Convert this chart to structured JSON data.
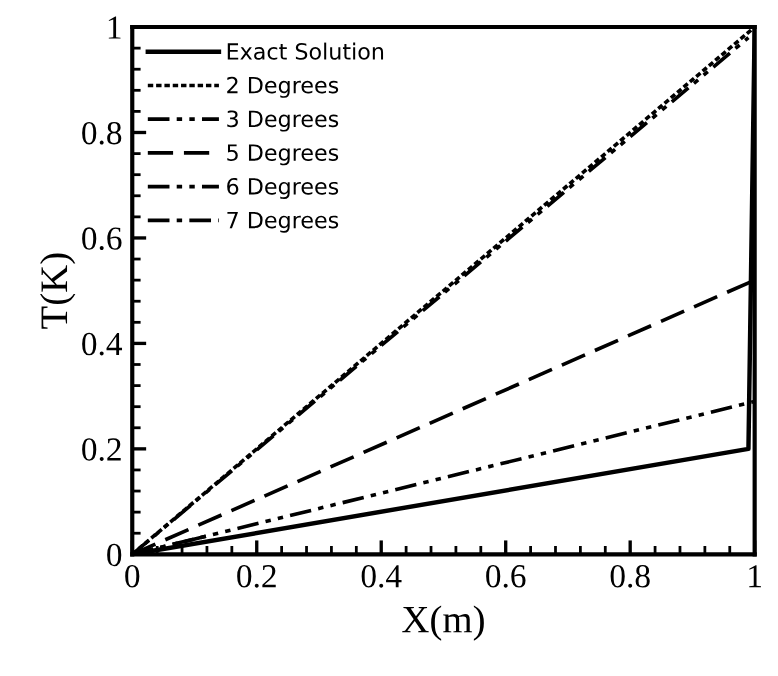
{
  "chart_data": {
    "type": "line",
    "xlabel": "X(m)",
    "ylabel": "T(K)",
    "xlim": [
      0,
      1
    ],
    "ylim": [
      0,
      1
    ],
    "xticks": [
      0,
      0.2,
      0.4,
      0.6,
      0.8,
      1
    ],
    "yticks": [
      0,
      0.2,
      0.4,
      0.6,
      0.8,
      1
    ],
    "grid": false,
    "legend": "top left",
    "marker": "none",
    "series": [
      {
        "name": "Exact Solution",
        "color": "#000000",
        "line_style": "solid",
        "x": [
          0,
          0.99,
          1
        ],
        "values": [
          0,
          0.2,
          1
        ]
      },
      {
        "name": "2 Degrees",
        "color": "#000000",
        "line_style": "dotted",
        "x": [
          0,
          1
        ],
        "values": [
          0,
          1
        ]
      },
      {
        "name": "3 Degrees",
        "color": "#000000",
        "line_style": "dashdotdot",
        "x": [
          0,
          0.99
        ],
        "values": [
          0,
          0.98
        ]
      },
      {
        "name": "5 Degrees",
        "color": "#000000",
        "line_style": "dashed",
        "x": [
          0,
          1
        ],
        "values": [
          0,
          0.52
        ]
      },
      {
        "name": "6 Degrees",
        "color": "#000000",
        "line_style": "dashdotdot",
        "x": [
          0,
          1
        ],
        "values": [
          0,
          0.29
        ]
      },
      {
        "name": "7 Degrees",
        "color": "#000000",
        "line_style": "dashdot",
        "x": [
          0,
          0.12
        ],
        "values": [
          0,
          0.035
        ]
      }
    ]
  }
}
